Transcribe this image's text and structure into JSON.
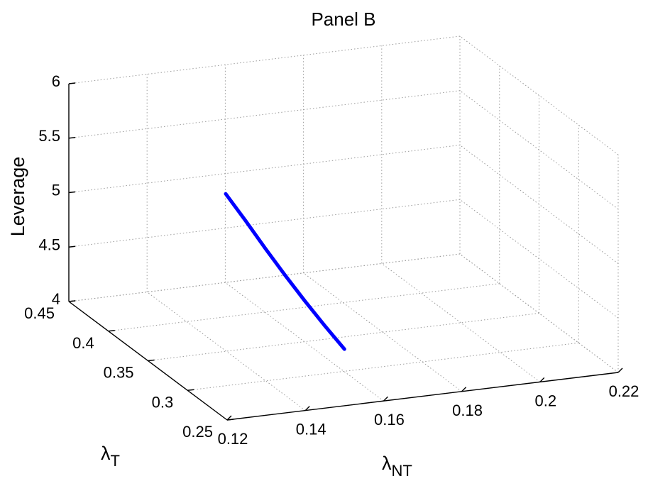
{
  "chart_data": {
    "type": "line3d",
    "title": "Panel B",
    "xlabel": {
      "main": "λ",
      "sub": "NT"
    },
    "ylabel": {
      "main": "λ",
      "sub": "T"
    },
    "zlabel": "Leverage",
    "xlim": [
      0.12,
      0.22
    ],
    "ylim": [
      0.25,
      0.45
    ],
    "zlim": [
      4,
      6
    ],
    "xticks": [
      "0.12",
      "0.14",
      "0.16",
      "0.18",
      "0.2",
      "0.22"
    ],
    "yticks": [
      "0.25",
      "0.3",
      "0.35",
      "0.4",
      "0.45"
    ],
    "zticks": [
      "4",
      "4.5",
      "5",
      "5.5",
      "6"
    ],
    "grid": true,
    "series": [
      {
        "color": "#0000ff",
        "points": [
          {
            "x": 0.15,
            "y": 0.4,
            "z": 5.13
          },
          {
            "x": 0.15,
            "y": 0.375,
            "z": 5.02
          },
          {
            "x": 0.15,
            "y": 0.35,
            "z": 4.9
          },
          {
            "x": 0.15,
            "y": 0.325,
            "z": 4.79
          },
          {
            "x": 0.15,
            "y": 0.3,
            "z": 4.69
          },
          {
            "x": 0.15,
            "y": 0.275,
            "z": 4.6
          },
          {
            "x": 0.15,
            "y": 0.25,
            "z": 4.52
          }
        ]
      }
    ]
  }
}
